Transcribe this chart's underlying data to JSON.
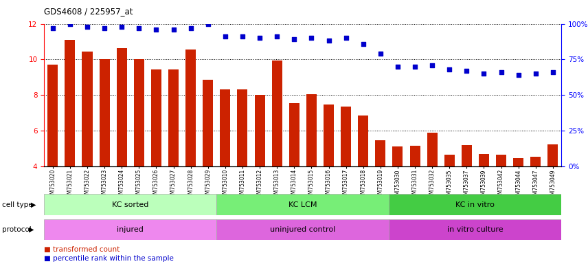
{
  "title": "GDS4608 / 225957_at",
  "samples": [
    "GSM753020",
    "GSM753021",
    "GSM753022",
    "GSM753023",
    "GSM753024",
    "GSM753025",
    "GSM753026",
    "GSM753027",
    "GSM753028",
    "GSM753029",
    "GSM753010",
    "GSM753011",
    "GSM753012",
    "GSM753013",
    "GSM753014",
    "GSM753015",
    "GSM753016",
    "GSM753017",
    "GSM753018",
    "GSM753019",
    "GSM753030",
    "GSM753031",
    "GSM753032",
    "GSM753035",
    "GSM753037",
    "GSM753039",
    "GSM753042",
    "GSM753044",
    "GSM753047",
    "GSM753049"
  ],
  "bar_values": [
    9.7,
    11.1,
    10.45,
    10.0,
    10.65,
    10.0,
    9.45,
    9.45,
    10.55,
    8.85,
    8.3,
    8.3,
    8.0,
    9.95,
    7.55,
    8.05,
    7.45,
    7.35,
    6.85,
    5.45,
    5.1,
    5.15,
    5.9,
    4.65,
    5.2,
    4.7,
    4.65,
    4.45,
    4.55,
    5.25
  ],
  "dot_values": [
    97,
    100,
    98,
    97,
    98,
    97,
    96,
    96,
    97,
    100,
    91,
    91,
    90,
    91,
    89,
    90,
    88,
    90,
    86,
    79,
    70,
    70,
    71,
    68,
    67,
    65,
    66,
    64,
    65,
    66
  ],
  "ylim_left": [
    4,
    12
  ],
  "ylim_right": [
    0,
    100
  ],
  "yticks_left": [
    4,
    6,
    8,
    10,
    12
  ],
  "yticks_right": [
    0,
    25,
    50,
    75,
    100
  ],
  "bar_color": "#cc2200",
  "dot_color": "#0000cc",
  "groups": [
    {
      "label": "KC sorted",
      "start": 0,
      "end": 10,
      "color": "#bbffbb"
    },
    {
      "label": "KC LCM",
      "start": 10,
      "end": 20,
      "color": "#77ee77"
    },
    {
      "label": "KC in vitro",
      "start": 20,
      "end": 30,
      "color": "#44cc44"
    }
  ],
  "protocols": [
    {
      "label": "injured",
      "start": 0,
      "end": 10,
      "color": "#ee88ee"
    },
    {
      "label": "uninjured control",
      "start": 10,
      "end": 20,
      "color": "#dd66dd"
    },
    {
      "label": "in vitro culture",
      "start": 20,
      "end": 30,
      "color": "#cc44cc"
    }
  ],
  "background_color": "#ffffff",
  "cell_type_label": "cell type",
  "protocol_label": "protocol"
}
